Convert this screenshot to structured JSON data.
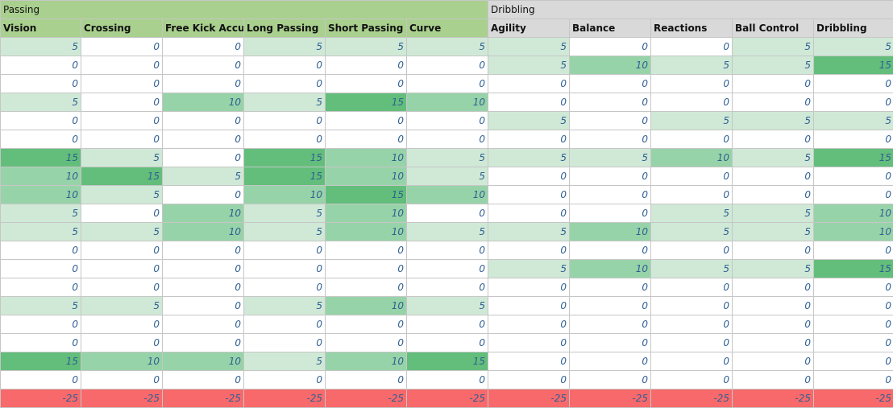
{
  "groups": [
    {
      "label": "Passing",
      "span": 6,
      "color": "#a9d08e"
    },
    {
      "label": "Dribbling",
      "span": 5,
      "color": "#d9d9d9"
    }
  ],
  "columns": [
    {
      "label": "Vision",
      "group": 0
    },
    {
      "label": "Crossing",
      "group": 0
    },
    {
      "label": "Free Kick Accuracy",
      "group": 0
    },
    {
      "label": "Long Passing",
      "group": 0
    },
    {
      "label": "Short Passing",
      "group": 0
    },
    {
      "label": "Curve",
      "group": 0
    },
    {
      "label": "Agility",
      "group": 1
    },
    {
      "label": "Balance",
      "group": 1
    },
    {
      "label": "Reactions",
      "group": 1
    },
    {
      "label": "Ball Control",
      "group": 1
    },
    {
      "label": "Dribbling",
      "group": 1
    }
  ],
  "rows": [
    [
      5,
      0,
      0,
      5,
      5,
      5,
      5,
      0,
      0,
      5,
      5
    ],
    [
      0,
      0,
      0,
      0,
      0,
      0,
      5,
      10,
      5,
      5,
      15
    ],
    [
      0,
      0,
      0,
      0,
      0,
      0,
      0,
      0,
      0,
      0,
      0
    ],
    [
      5,
      0,
      10,
      5,
      15,
      10,
      0,
      0,
      0,
      0,
      0
    ],
    [
      0,
      0,
      0,
      0,
      0,
      0,
      5,
      0,
      5,
      5,
      5
    ],
    [
      0,
      0,
      0,
      0,
      0,
      0,
      0,
      0,
      0,
      0,
      0
    ],
    [
      15,
      5,
      0,
      15,
      10,
      5,
      5,
      5,
      10,
      5,
      15
    ],
    [
      10,
      15,
      5,
      15,
      10,
      5,
      0,
      0,
      0,
      0,
      0
    ],
    [
      10,
      5,
      0,
      10,
      15,
      10,
      0,
      0,
      0,
      0,
      0
    ],
    [
      5,
      0,
      10,
      5,
      10,
      0,
      0,
      0,
      5,
      5,
      10
    ],
    [
      5,
      5,
      10,
      5,
      10,
      5,
      5,
      10,
      5,
      5,
      10
    ],
    [
      0,
      0,
      0,
      0,
      0,
      0,
      0,
      0,
      0,
      0,
      0
    ],
    [
      0,
      0,
      0,
      0,
      0,
      0,
      5,
      10,
      5,
      5,
      15
    ],
    [
      0,
      0,
      0,
      0,
      0,
      0,
      0,
      0,
      0,
      0,
      0
    ],
    [
      5,
      5,
      0,
      5,
      10,
      5,
      0,
      0,
      0,
      0,
      0
    ],
    [
      0,
      0,
      0,
      0,
      0,
      0,
      0,
      0,
      0,
      0,
      0
    ],
    [
      0,
      0,
      0,
      0,
      0,
      0,
      0,
      0,
      0,
      0,
      0
    ],
    [
      15,
      10,
      10,
      5,
      10,
      15,
      0,
      0,
      0,
      0,
      0
    ],
    [
      0,
      0,
      0,
      0,
      0,
      0,
      0,
      0,
      0,
      0,
      0
    ]
  ],
  "penalty_row": [
    -25,
    -25,
    -25,
    -25,
    -25,
    -25,
    -25,
    -25,
    -25,
    -25,
    -25
  ],
  "colors": {
    "value_0": "#ffffff",
    "value_5": "#cfe9d6",
    "value_10": "#97d3a8",
    "value_15": "#63be7b",
    "penalty": "#f8696b"
  }
}
